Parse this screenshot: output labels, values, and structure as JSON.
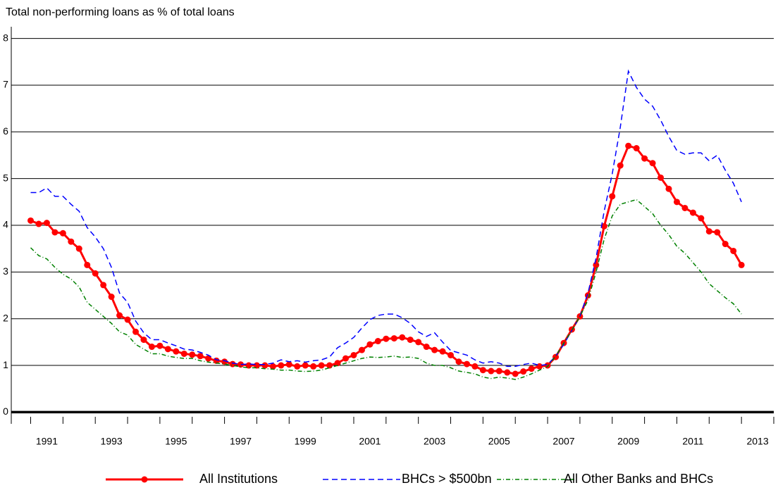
{
  "chart_data": {
    "type": "line",
    "title": "Total non-performing loans as % of total loans",
    "x": [
      1991,
      1991.25,
      1991.5,
      1991.75,
      1992,
      1992.25,
      1992.5,
      1992.75,
      1993,
      1993.25,
      1993.5,
      1993.75,
      1994,
      1994.25,
      1994.5,
      1994.75,
      1995,
      1995.25,
      1995.5,
      1995.75,
      1996,
      1996.25,
      1996.5,
      1996.75,
      1997,
      1997.25,
      1997.5,
      1997.75,
      1998,
      1998.25,
      1998.5,
      1998.75,
      1999,
      1999.25,
      1999.5,
      1999.75,
      2000,
      2000.25,
      2000.5,
      2000.75,
      2001,
      2001.25,
      2001.5,
      2001.75,
      2002,
      2002.25,
      2002.5,
      2002.75,
      2003,
      2003.25,
      2003.5,
      2003.75,
      2004,
      2004.25,
      2004.5,
      2004.75,
      2005,
      2005.25,
      2005.5,
      2005.75,
      2006,
      2006.25,
      2006.5,
      2006.75,
      2007,
      2007.25,
      2007.5,
      2007.75,
      2008,
      2008.25,
      2008.5,
      2008.75,
      2009,
      2009.25,
      2009.5,
      2009.75,
      2010,
      2010.25,
      2010.5,
      2010.75,
      2011,
      2011.25,
      2011.5,
      2011.75,
      2012,
      2012.25,
      2012.5,
      2012.75,
      2013
    ],
    "series": [
      {
        "name": "All Institutions",
        "color": "#ff0000",
        "style": "solid-markers",
        "values": [
          4.1,
          4.03,
          4.05,
          3.85,
          3.83,
          3.65,
          3.5,
          3.15,
          2.97,
          2.72,
          2.47,
          2.07,
          1.98,
          1.72,
          1.55,
          1.4,
          1.42,
          1.35,
          1.3,
          1.25,
          1.23,
          1.2,
          1.15,
          1.1,
          1.08,
          1.03,
          1.02,
          1.0,
          1.0,
          1.0,
          0.98,
          1.0,
          1.02,
          0.98,
          1.0,
          0.98,
          1.0,
          1.0,
          1.05,
          1.15,
          1.22,
          1.33,
          1.45,
          1.52,
          1.57,
          1.58,
          1.6,
          1.55,
          1.5,
          1.4,
          1.33,
          1.3,
          1.22,
          1.08,
          1.03,
          0.98,
          0.9,
          0.88,
          0.88,
          0.85,
          0.82,
          0.87,
          0.93,
          0.98,
          1.0,
          1.18,
          1.48,
          1.77,
          2.05,
          2.5,
          3.15,
          3.98,
          4.62,
          5.28,
          5.7,
          5.65,
          5.43,
          5.33,
          5.02,
          4.78,
          4.5,
          4.37,
          4.27,
          4.15,
          3.87,
          3.85,
          3.6,
          3.45,
          3.15
        ]
      },
      {
        "name": "BHCs > $500bn",
        "color": "#0000ff",
        "style": "dashed",
        "values": [
          4.7,
          4.7,
          4.8,
          4.62,
          4.62,
          4.45,
          4.3,
          3.95,
          3.75,
          3.5,
          3.1,
          2.55,
          2.35,
          1.95,
          1.7,
          1.55,
          1.55,
          1.48,
          1.42,
          1.35,
          1.33,
          1.28,
          1.22,
          1.12,
          1.1,
          1.05,
          1.02,
          1.03,
          1.02,
          1.02,
          1.05,
          1.12,
          1.08,
          1.1,
          1.07,
          1.1,
          1.12,
          1.18,
          1.38,
          1.48,
          1.6,
          1.8,
          1.98,
          2.07,
          2.1,
          2.1,
          2.02,
          1.9,
          1.72,
          1.62,
          1.7,
          1.5,
          1.32,
          1.27,
          1.22,
          1.12,
          1.05,
          1.08,
          1.05,
          0.98,
          0.98,
          1.02,
          1.05,
          1.0,
          1.02,
          1.2,
          1.45,
          1.75,
          2.05,
          2.55,
          3.3,
          4.3,
          5.1,
          6.1,
          7.3,
          6.95,
          6.7,
          6.55,
          6.25,
          5.9,
          5.6,
          5.52,
          5.55,
          5.55,
          5.38,
          5.5,
          5.18,
          4.9,
          4.5
        ]
      },
      {
        "name": "All Other Banks and BHCs",
        "color": "#008000",
        "style": "dashdot",
        "values": [
          3.52,
          3.35,
          3.28,
          3.1,
          2.95,
          2.85,
          2.68,
          2.35,
          2.2,
          2.05,
          1.9,
          1.72,
          1.65,
          1.45,
          1.35,
          1.25,
          1.25,
          1.2,
          1.17,
          1.15,
          1.15,
          1.1,
          1.07,
          1.05,
          1.03,
          1.0,
          0.97,
          0.95,
          0.95,
          0.93,
          0.92,
          0.9,
          0.9,
          0.88,
          0.87,
          0.88,
          0.9,
          0.95,
          1.0,
          1.05,
          1.1,
          1.15,
          1.18,
          1.17,
          1.18,
          1.2,
          1.17,
          1.18,
          1.15,
          1.05,
          1.0,
          1.0,
          0.95,
          0.88,
          0.85,
          0.82,
          0.75,
          0.72,
          0.75,
          0.73,
          0.7,
          0.75,
          0.82,
          0.9,
          0.98,
          1.2,
          1.48,
          1.75,
          2.05,
          2.4,
          3.0,
          3.7,
          4.2,
          4.45,
          4.5,
          4.55,
          4.4,
          4.25,
          4.0,
          3.8,
          3.55,
          3.4,
          3.2,
          3.0,
          2.75,
          2.6,
          2.45,
          2.32,
          2.1
        ]
      }
    ],
    "xlim": [
      1990.4,
      2014
    ],
    "xticks": [
      1991,
      1992,
      1993,
      1994,
      1995,
      1996,
      1997,
      1998,
      1999,
      2000,
      2001,
      2002,
      2003,
      2004,
      2005,
      2006,
      2007,
      2008,
      2009,
      2010,
      2011,
      2012,
      2013,
      2014
    ],
    "xlabels": [
      1991,
      1993,
      1995,
      1997,
      1999,
      2001,
      2003,
      2005,
      2007,
      2009,
      2011,
      2013
    ],
    "ylim": [
      -0.25,
      8.25
    ],
    "yticks": [
      0,
      1,
      2,
      3,
      4,
      5,
      6,
      7,
      8
    ],
    "grid": true,
    "legend": "bottom"
  }
}
